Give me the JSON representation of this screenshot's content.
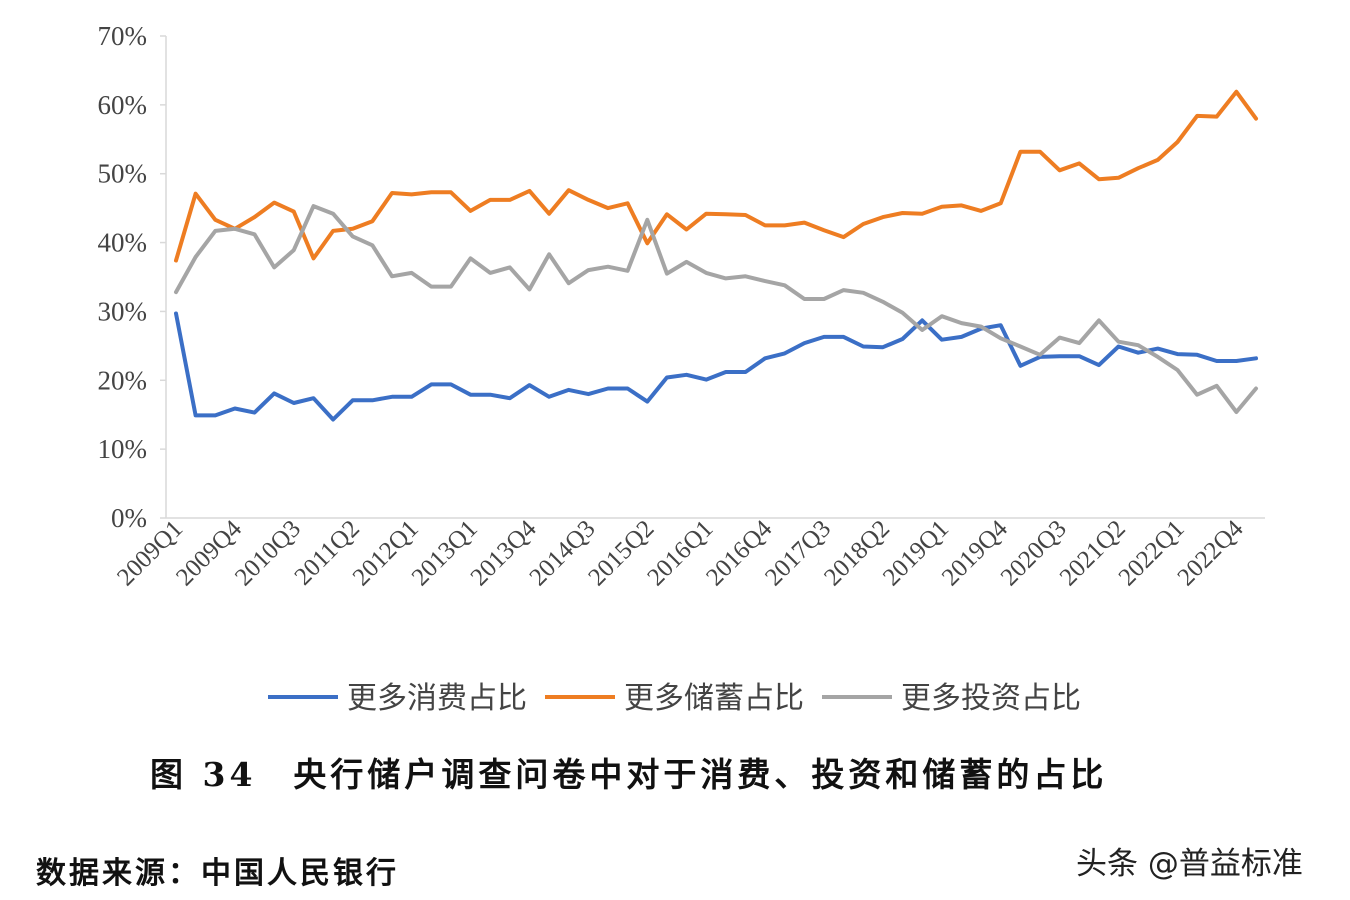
{
  "chart_data": {
    "type": "line",
    "title": "图 34　央行储户调查问卷中对于消费、投资和储蓄的占比",
    "source": "数据来源：中国人民银行",
    "watermark": "头条 @普益标准",
    "xlabel": "",
    "ylabel": "",
    "ylim": [
      0,
      70
    ],
    "y_ticks": [
      "0%",
      "10%",
      "20%",
      "30%",
      "40%",
      "50%",
      "60%",
      "70%"
    ],
    "grid": false,
    "legend_position": "bottom",
    "categories": [
      "2009Q1",
      "2009Q2",
      "2009Q3",
      "2009Q4",
      "2010Q1",
      "2010Q2",
      "2010Q3",
      "2010Q4",
      "2011Q1",
      "2011Q2",
      "2011Q3",
      "2011Q4",
      "2012Q1",
      "2012Q2",
      "2012Q3",
      "2013Q1",
      "2013Q2",
      "2013Q3",
      "2013Q4",
      "2014Q1",
      "2014Q2",
      "2014Q3",
      "2014Q4",
      "2015Q1",
      "2015Q2",
      "2015Q3",
      "2015Q4",
      "2016Q1",
      "2016Q2",
      "2016Q3",
      "2016Q4",
      "2017Q1",
      "2017Q2",
      "2017Q3",
      "2017Q4",
      "2018Q1",
      "2018Q2",
      "2018Q3",
      "2018Q4",
      "2019Q1",
      "2019Q2",
      "2019Q3",
      "2019Q4",
      "2020Q1",
      "2020Q2",
      "2020Q3",
      "2020Q4",
      "2021Q1",
      "2021Q2",
      "2021Q3",
      "2021Q4",
      "2022Q1",
      "2022Q2",
      "2022Q3",
      "2022Q4",
      "2023Q1"
    ],
    "x_tick_labels": [
      "2009Q1",
      "2009Q4",
      "2010Q3",
      "2011Q2",
      "2012Q1",
      "2013Q1",
      "2013Q4",
      "2014Q3",
      "2015Q2",
      "2016Q1",
      "2016Q4",
      "2017Q3",
      "2018Q2",
      "2019Q1",
      "2019Q4",
      "2020Q3",
      "2021Q2",
      "2022Q1",
      "2022Q4"
    ],
    "series": [
      {
        "name": "更多消费占比",
        "color": "#3b6fc6",
        "values": [
          29.7,
          14.9,
          14.9,
          15.9,
          15.3,
          18.1,
          16.7,
          17.4,
          14.3,
          17.1,
          17.1,
          17.6,
          17.6,
          19.4,
          19.4,
          17.9,
          17.9,
          17.4,
          19.3,
          17.6,
          18.6,
          18.0,
          18.8,
          18.8,
          16.9,
          20.4,
          20.8,
          20.1,
          21.2,
          21.2,
          23.2,
          23.9,
          25.4,
          26.3,
          26.3,
          24.9,
          24.8,
          26.0,
          28.7,
          25.9,
          26.3,
          27.5,
          28.0,
          22.1,
          23.4,
          23.5,
          23.5,
          22.2,
          24.9,
          24.0,
          24.6,
          23.8,
          23.7,
          22.8,
          22.8,
          23.2
        ]
      },
      {
        "name": "更多储蓄占比",
        "color": "#ee7d22",
        "values": [
          37.4,
          47.1,
          43.3,
          42.0,
          43.7,
          45.8,
          44.5,
          37.7,
          41.7,
          42.0,
          43.1,
          47.2,
          47.0,
          47.3,
          47.3,
          44.6,
          46.2,
          46.2,
          47.5,
          44.2,
          47.6,
          46.2,
          45.0,
          45.7,
          39.9,
          44.1,
          41.9,
          44.2,
          44.1,
          44.0,
          42.5,
          42.5,
          42.9,
          41.8,
          40.8,
          42.7,
          43.7,
          44.3,
          44.2,
          45.2,
          45.4,
          44.6,
          45.7,
          53.2,
          53.2,
          50.5,
          51.5,
          49.2,
          49.4,
          50.8,
          52.0,
          54.6,
          58.4,
          58.3,
          61.9,
          58.0
        ]
      },
      {
        "name": "更多投资占比",
        "color": "#a5a5a5",
        "values": [
          32.8,
          37.9,
          41.7,
          42.0,
          41.2,
          36.4,
          38.9,
          45.3,
          44.2,
          40.9,
          39.6,
          35.1,
          35.6,
          33.6,
          33.6,
          37.7,
          35.6,
          36.4,
          33.2,
          38.3,
          34.1,
          36.0,
          36.5,
          35.9,
          43.3,
          35.5,
          37.2,
          35.6,
          34.8,
          35.1,
          34.4,
          33.8,
          31.8,
          31.8,
          33.1,
          32.7,
          31.4,
          29.8,
          27.3,
          29.3,
          28.3,
          27.8,
          26.1,
          24.9,
          23.7,
          26.2,
          25.4,
          28.7,
          25.6,
          25.1,
          23.4,
          21.5,
          17.9,
          19.2,
          15.4,
          18.8
        ]
      }
    ]
  }
}
